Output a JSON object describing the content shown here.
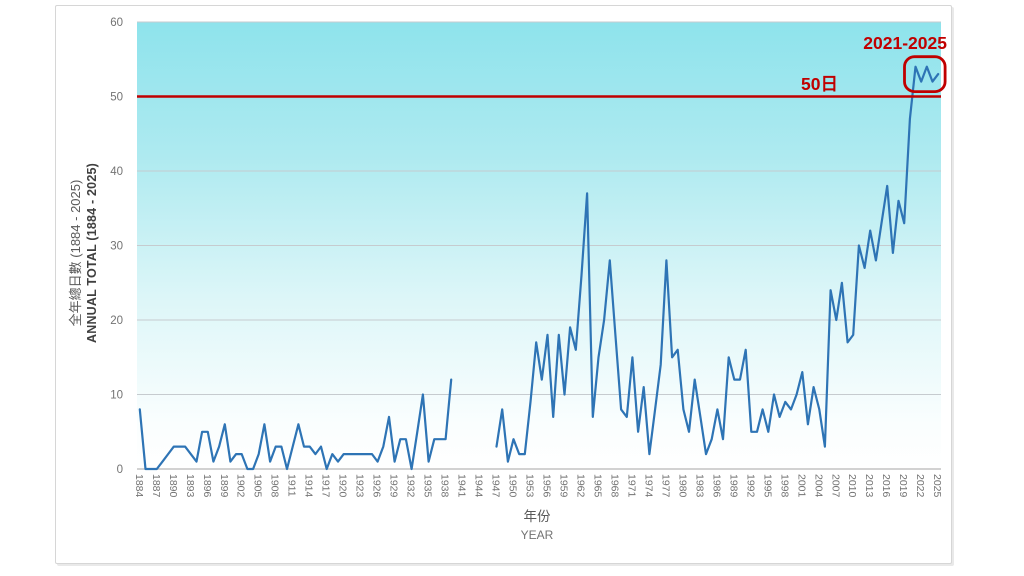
{
  "annotations": {
    "period_label": "2021-2025",
    "threshold_label": "50日",
    "accent_color": "#C00000"
  },
  "axis_titles": {
    "y_line1_zh": "全年總日數 (1884 - 2025)",
    "y_line2_en": "ANNUAL TOTAL (1884 - 2025)",
    "x_line1_zh": "年份",
    "x_line2_en": "YEAR"
  },
  "chart_data": {
    "type": "line",
    "title": "",
    "xlabel": "年份 / YEAR",
    "ylabel": "全年總日數 / ANNUAL TOTAL (1884 - 2025)",
    "line_color": "#2E74B5",
    "plot_gradient_top": "#8EE3EC",
    "plot_gradient_bottom": "#FFFFFF",
    "grid": true,
    "legend": "none",
    "ylim": [
      0,
      60
    ],
    "y_ticks": [
      0,
      10,
      20,
      30,
      40,
      50,
      60
    ],
    "x_start": 1884,
    "x_end": 2025,
    "x_tick_step": 3,
    "x_tick_years": [
      1884,
      1887,
      1890,
      1893,
      1896,
      1899,
      1902,
      1905,
      1908,
      1911,
      1914,
      1917,
      1920,
      1923,
      1926,
      1929,
      1932,
      1935,
      1938,
      1941,
      1944,
      1947,
      1950,
      1953,
      1956,
      1959,
      1962,
      1965,
      1968,
      1971,
      1974,
      1977,
      1980,
      1983,
      1986,
      1989,
      1992,
      1995,
      1998,
      2001,
      2004,
      2007,
      2010,
      2013,
      2016,
      2019,
      2022,
      2025
    ],
    "threshold_value": 50,
    "highlight_range": [
      2021,
      2025
    ],
    "missing_data_years": "1940-1946",
    "values": [
      8,
      0,
      0,
      0,
      1,
      2,
      3,
      3,
      3,
      2,
      1,
      5,
      5,
      1,
      3,
      6,
      1,
      2,
      2,
      0,
      0,
      2,
      6,
      1,
      3,
      3,
      0,
      3,
      6,
      3,
      3,
      2,
      3,
      0,
      2,
      1,
      2,
      2,
      2,
      2,
      2,
      2,
      1,
      3,
      7,
      1,
      4,
      4,
      0,
      5,
      10,
      1,
      4,
      4,
      4,
      12,
      null,
      null,
      null,
      null,
      null,
      null,
      null,
      3,
      8,
      1,
      4,
      2,
      2,
      9,
      17,
      12,
      18,
      7,
      18,
      10,
      19,
      16,
      26,
      37,
      7,
      15,
      20,
      28,
      18,
      8,
      7,
      15,
      5,
      11,
      2,
      8,
      14,
      28,
      15,
      16,
      8,
      5,
      12,
      7,
      2,
      4,
      8,
      4,
      15,
      12,
      12,
      16,
      5,
      5,
      8,
      5,
      10,
      7,
      9,
      8,
      10,
      13,
      6,
      11,
      8,
      3,
      24,
      20,
      25,
      17,
      18,
      30,
      27,
      32,
      28,
      33,
      38,
      29,
      36,
      33,
      47,
      54,
      52,
      54,
      52,
      53
    ]
  }
}
